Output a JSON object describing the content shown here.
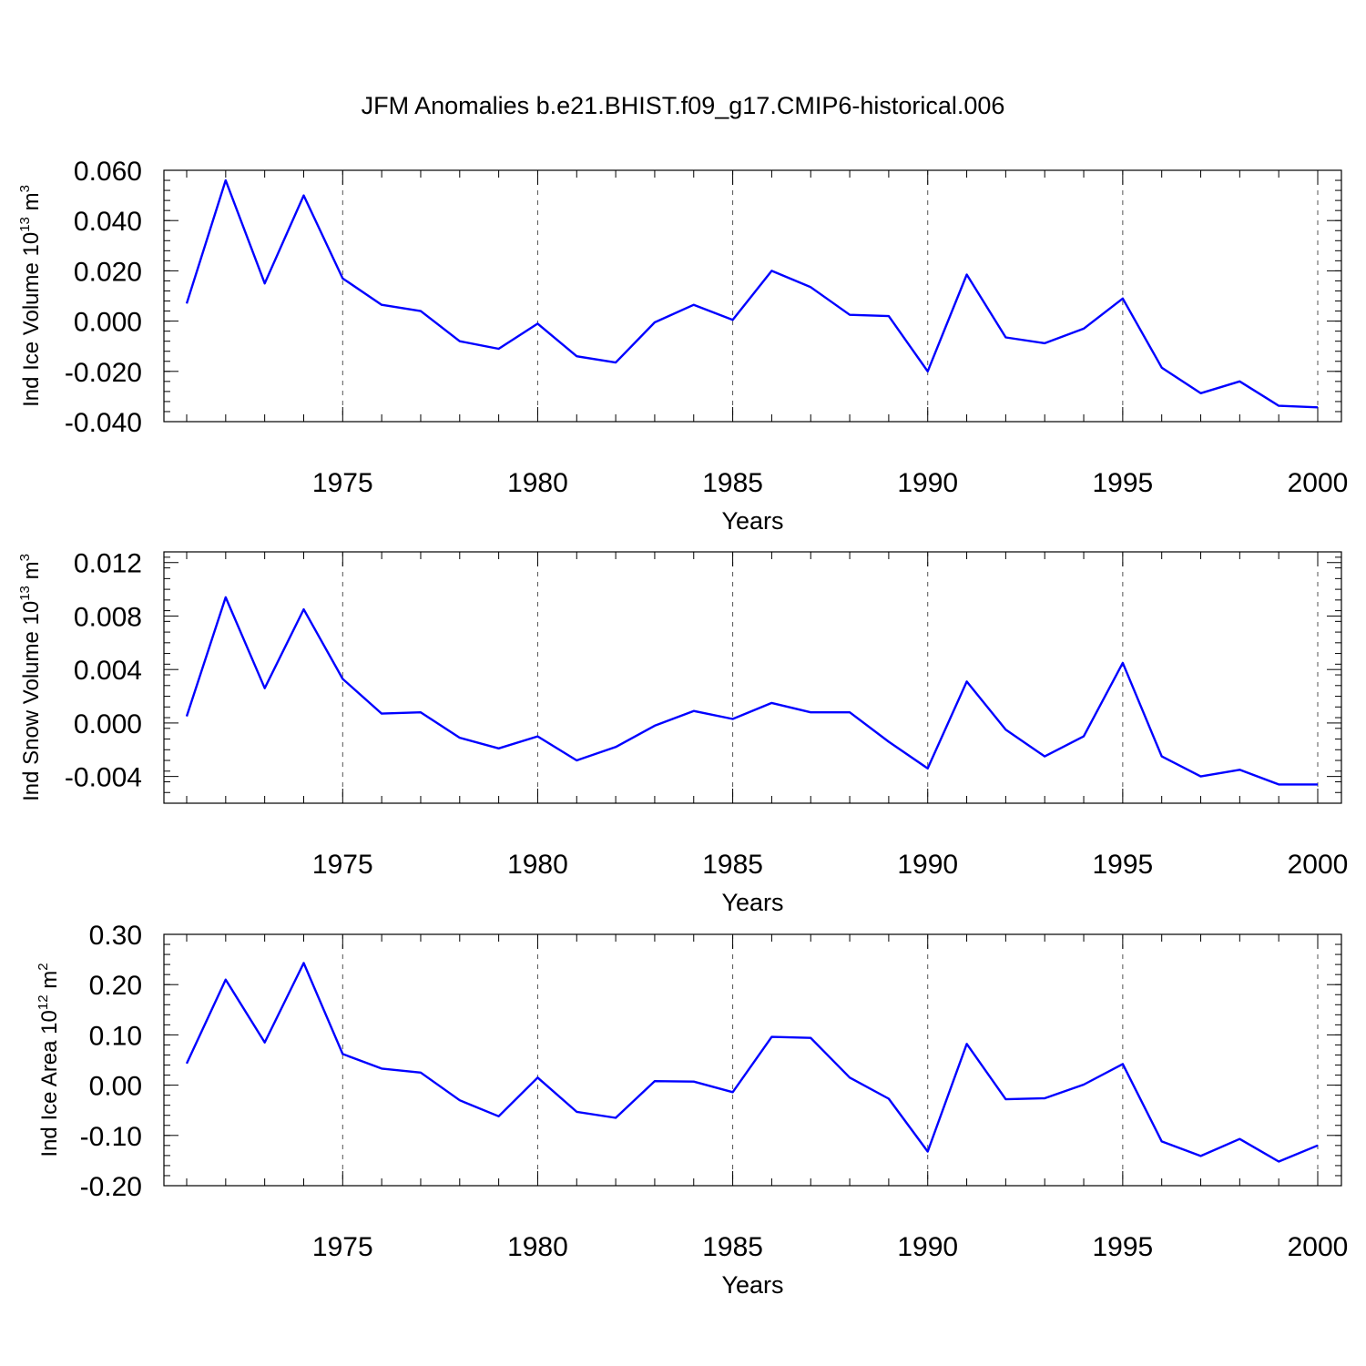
{
  "title": "JFM Anomalies b.e21.BHIST.f09_g17.CMIP6-historical.006",
  "line_color": "#0000ff",
  "chart_data": [
    {
      "type": "line",
      "ylabel": {
        "prefix": "Ind Ice Volume 10",
        "exponent": "13",
        "unit": " m",
        "unit_exponent": "3"
      },
      "xlabel": "Years",
      "xlim": [
        1971,
        2000
      ],
      "ylim": [
        -0.04,
        0.06
      ],
      "yticks": [
        0.06,
        0.04,
        0.02,
        0.0,
        -0.02,
        -0.04
      ],
      "ytick_labels": [
        "0.060",
        "0.040",
        "0.020",
        "0.000",
        "-0.020",
        "-0.040"
      ],
      "xticks": [
        1975,
        1980,
        1985,
        1990,
        1995,
        2000
      ],
      "xtick_labels": [
        "1975",
        "1980",
        "1985",
        "1990",
        "1995",
        "2000"
      ],
      "grid": "dashed vertical lines at major x ticks",
      "x": [
        1971,
        1972,
        1973,
        1974,
        1975,
        1976,
        1977,
        1978,
        1979,
        1980,
        1981,
        1982,
        1983,
        1984,
        1985,
        1986,
        1987,
        1988,
        1989,
        1990,
        1991,
        1992,
        1993,
        1994,
        1995,
        1996,
        1997,
        1998,
        1999,
        2000
      ],
      "y": [
        0.007,
        0.056,
        0.015,
        0.05,
        0.017,
        0.0065,
        0.004,
        -0.008,
        -0.011,
        -0.001,
        -0.014,
        -0.0165,
        -0.0005,
        0.0065,
        0.0005,
        0.02,
        0.0135,
        0.0025,
        0.002,
        -0.02,
        0.0185,
        -0.0065,
        -0.0088,
        -0.003,
        0.009,
        -0.0185,
        -0.0287,
        -0.024,
        -0.0337,
        -0.0343
      ]
    },
    {
      "type": "line",
      "ylabel": {
        "prefix": "Ind Snow Volume 10",
        "exponent": "13",
        "unit": " m",
        "unit_exponent": "3"
      },
      "xlabel": "Years",
      "xlim": [
        1971,
        2000
      ],
      "ylim": [
        -0.006,
        0.0128
      ],
      "yticks": [
        0.012,
        0.008,
        0.004,
        0.0,
        -0.004
      ],
      "ytick_labels": [
        "0.012",
        "0.008",
        "0.004",
        "0.000",
        "-0.004"
      ],
      "xticks": [
        1975,
        1980,
        1985,
        1990,
        1995,
        2000
      ],
      "xtick_labels": [
        "1975",
        "1980",
        "1985",
        "1990",
        "1995",
        "2000"
      ],
      "grid": "dashed vertical lines at major x ticks",
      "x": [
        1971,
        1972,
        1973,
        1974,
        1975,
        1976,
        1977,
        1978,
        1979,
        1980,
        1981,
        1982,
        1983,
        1984,
        1985,
        1986,
        1987,
        1988,
        1989,
        1990,
        1991,
        1992,
        1993,
        1994,
        1995,
        1996,
        1997,
        1998,
        1999,
        2000
      ],
      "y": [
        0.0005,
        0.0094,
        0.0026,
        0.0085,
        0.0033,
        0.0007,
        0.0008,
        -0.0011,
        -0.0019,
        -0.001,
        -0.0028,
        -0.0018,
        -0.0002,
        0.0009,
        0.0003,
        0.0015,
        0.0008,
        0.0008,
        -0.0014,
        -0.0034,
        0.0031,
        -0.0005,
        -0.0025,
        -0.001,
        0.0045,
        -0.0025,
        -0.004,
        -0.0035,
        -0.0046,
        -0.0046
      ]
    },
    {
      "type": "line",
      "ylabel": {
        "prefix": "Ind Ice Area 10",
        "exponent": "12",
        "unit": " m",
        "unit_exponent": "2"
      },
      "xlabel": "Years",
      "xlim": [
        1971,
        2000
      ],
      "ylim": [
        -0.2,
        0.3
      ],
      "yticks": [
        0.3,
        0.2,
        0.1,
        0.0,
        -0.1,
        -0.2
      ],
      "ytick_labels": [
        "0.30",
        "0.20",
        "0.10",
        "0.00",
        "-0.10",
        "-0.20"
      ],
      "xticks": [
        1975,
        1980,
        1985,
        1990,
        1995,
        2000
      ],
      "xtick_labels": [
        "1975",
        "1980",
        "1985",
        "1990",
        "1995",
        "2000"
      ],
      "grid": "dashed vertical lines at major x ticks",
      "x": [
        1971,
        1972,
        1973,
        1974,
        1975,
        1976,
        1977,
        1978,
        1979,
        1980,
        1981,
        1982,
        1983,
        1984,
        1985,
        1986,
        1987,
        1988,
        1989,
        1990,
        1991,
        1992,
        1993,
        1994,
        1995,
        1996,
        1997,
        1998,
        1999,
        2000
      ],
      "y": [
        0.043,
        0.21,
        0.085,
        0.243,
        0.062,
        0.033,
        0.025,
        -0.03,
        -0.062,
        0.015,
        -0.053,
        -0.065,
        0.008,
        0.007,
        -0.014,
        0.096,
        0.094,
        0.015,
        -0.027,
        -0.132,
        0.082,
        -0.028,
        -0.026,
        0.001,
        0.042,
        -0.112,
        -0.141,
        -0.107,
        -0.152,
        -0.12
      ]
    }
  ]
}
